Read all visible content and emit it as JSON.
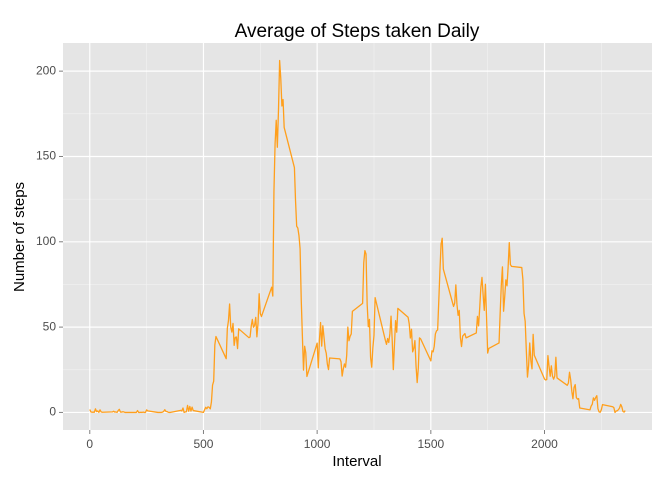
{
  "chart_data": {
    "type": "line",
    "title": "Average of Steps taken Daily",
    "x_label": "Interval",
    "y_label": "Number of steps",
    "color": "#ff9f1c",
    "x": [
      0,
      5,
      10,
      15,
      20,
      25,
      30,
      35,
      40,
      45,
      50,
      55,
      100,
      105,
      110,
      115,
      120,
      125,
      130,
      135,
      140,
      145,
      150,
      155,
      200,
      205,
      210,
      215,
      220,
      225,
      230,
      235,
      240,
      245,
      250,
      255,
      300,
      305,
      310,
      315,
      320,
      325,
      330,
      335,
      340,
      345,
      350,
      355,
      400,
      405,
      410,
      415,
      420,
      425,
      430,
      435,
      440,
      445,
      450,
      455,
      500,
      505,
      510,
      515,
      520,
      525,
      530,
      535,
      540,
      545,
      550,
      555,
      600,
      605,
      610,
      615,
      620,
      625,
      630,
      635,
      640,
      645,
      650,
      655,
      700,
      705,
      710,
      715,
      720,
      725,
      730,
      735,
      740,
      745,
      750,
      755,
      800,
      805,
      810,
      815,
      820,
      825,
      830,
      835,
      840,
      845,
      850,
      855,
      900,
      905,
      910,
      915,
      920,
      925,
      930,
      935,
      940,
      945,
      950,
      955,
      1000,
      1005,
      1010,
      1015,
      1020,
      1025,
      1030,
      1035,
      1040,
      1045,
      1050,
      1055,
      1100,
      1105,
      1110,
      1115,
      1120,
      1125,
      1130,
      1135,
      1140,
      1145,
      1150,
      1155,
      1200,
      1205,
      1210,
      1215,
      1220,
      1225,
      1230,
      1235,
      1240,
      1245,
      1250,
      1255,
      1300,
      1305,
      1310,
      1315,
      1320,
      1325,
      1330,
      1335,
      1340,
      1345,
      1350,
      1355,
      1400,
      1405,
      1410,
      1415,
      1420,
      1425,
      1430,
      1435,
      1440,
      1445,
      1450,
      1455,
      1500,
      1505,
      1510,
      1515,
      1520,
      1525,
      1530,
      1535,
      1540,
      1545,
      1550,
      1555,
      1600,
      1605,
      1610,
      1615,
      1620,
      1625,
      1630,
      1635,
      1640,
      1645,
      1650,
      1655,
      1700,
      1705,
      1710,
      1715,
      1720,
      1725,
      1730,
      1735,
      1740,
      1745,
      1750,
      1755,
      1800,
      1805,
      1810,
      1815,
      1820,
      1825,
      1830,
      1835,
      1840,
      1845,
      1850,
      1855,
      1900,
      1905,
      1910,
      1915,
      1920,
      1925,
      1930,
      1935,
      1940,
      1945,
      1950,
      1955,
      2000,
      2005,
      2010,
      2015,
      2020,
      2025,
      2030,
      2035,
      2040,
      2045,
      2050,
      2055,
      2100,
      2105,
      2110,
      2115,
      2120,
      2125,
      2130,
      2135,
      2140,
      2145,
      2150,
      2155,
      2200,
      2205,
      2210,
      2215,
      2220,
      2225,
      2230,
      2235,
      2240,
      2245,
      2250,
      2255,
      2300,
      2305,
      2310,
      2315,
      2320,
      2325,
      2330,
      2335,
      2340,
      2345,
      2350,
      2355
    ],
    "values": [
      1.7,
      0.3,
      0.1,
      0.2,
      0.1,
      2.1,
      0.5,
      0.9,
      0,
      1.5,
      0.3,
      0.1,
      0.3,
      0.7,
      0.2,
      0.3,
      0,
      1.1,
      1.8,
      0.2,
      0.2,
      0.4,
      0.3,
      0,
      0,
      0,
      1.1,
      0,
      0,
      0.1,
      0,
      0.2,
      0,
      0,
      1.5,
      0.9,
      0,
      0,
      0,
      0,
      0.2,
      0.6,
      1.6,
      0.6,
      0.5,
      0.1,
      0,
      0,
      1.2,
      0.9,
      2.6,
      0,
      0.3,
      0.4,
      4.1,
      0.7,
      3.5,
      0.8,
      3.1,
      1.1,
      0,
      1.6,
      3,
      2.2,
      3.3,
      3,
      2.1,
      6.1,
      16,
      18.3,
      39.5,
      44.5,
      31.5,
      49.3,
      53.8,
      63.5,
      50,
      47.1,
      52.2,
      39.3,
      44,
      44.2,
      37.4,
      49,
      43.8,
      44.2,
      50.5,
      54.5,
      49.9,
      51,
      55.7,
      44.3,
      52.3,
      69.5,
      57.8,
      56.2,
      73.4,
      68.2,
      129.4,
      157.5,
      171.2,
      155.4,
      177.3,
      206.2,
      195.9,
      179.6,
      183.4,
      167,
      143.5,
      124,
      109.1,
      108.1,
      103.7,
      95.9,
      66.2,
      45.2,
      24.8,
      38.8,
      35,
      21.1,
      40.6,
      26.1,
      42.4,
      52.7,
      38.9,
      50.8,
      44.3,
      37.4,
      34.7,
      28.3,
      25.1,
      31.9,
      31.4,
      29.7,
      21.3,
      25.5,
      28.4,
      26.5,
      33.4,
      50,
      42,
      44.6,
      46,
      59.2,
      63.9,
      87.7,
      94.8,
      92.8,
      63.4,
      50.2,
      54.5,
      32.4,
      26.5,
      37.7,
      45.1,
      67.3,
      42.3,
      39.9,
      43.3,
      41,
      46.2,
      56.4,
      42.8,
      25.1,
      39.5,
      53.8,
      47,
      61,
      55.8,
      51.9,
      43.6,
      48.7,
      35.5,
      37.5,
      42.1,
      27.1,
      17.5,
      26.1,
      43.7,
      43.2,
      30.2,
      36.1,
      35.5,
      38.8,
      46,
      47.8,
      48.4,
      65.3,
      82.9,
      98.7,
      102.1,
      84,
      62.1,
      64.1,
      74.7,
      63.2,
      56.9,
      59.8,
      43.9,
      38.6,
      44.7,
      45.5,
      46.2,
      43.7,
      46.6,
      56.3,
      50.7,
      61.2,
      73.4,
      79.1,
      68.9,
      59.8,
      75.1,
      56.5,
      34.8,
      37.5,
      40.7,
      58.3,
      74.7,
      85.3,
      59.3,
      67.8,
      77.7,
      74.2,
      85.3,
      99.5,
      86.6,
      85.6,
      84.9,
      77.8,
      58,
      53.4,
      36.3,
      20.7,
      27.4,
      40.7,
      30.2,
      25.5,
      45.7,
      33.5,
      19.6,
      19,
      19.3,
      33.3,
      26.8,
      21.2,
      27.3,
      21.3,
      19.5,
      21.3,
      32.3,
      20.2,
      15.9,
      17.2,
      23.5,
      19.2,
      12.5,
      8,
      14.7,
      16.3,
      8.7,
      7.8,
      8.1,
      2.6,
      1.5,
      3.7,
      4.8,
      8.5,
      7.1,
      8.7,
      9.8,
      2.2,
      0.3,
      0.1,
      1.6,
      4.6,
      3.3,
      2.8,
      0,
      0.8,
      1,
      1.6,
      2.6,
      4.7,
      3.3,
      0.6,
      0.2,
      1.1
    ],
    "xlim": [
      -117.75,
      2472.75
    ],
    "ylim": [
      -10.3,
      216.5
    ],
    "xticks": [
      0,
      500,
      1000,
      1500,
      2000
    ],
    "yticks": [
      0,
      50,
      100,
      150,
      200
    ],
    "x_minor_ticks": [
      250,
      750,
      1250,
      1750,
      2250
    ],
    "y_minor_ticks": [
      25,
      75,
      125,
      175
    ],
    "grid": true
  }
}
